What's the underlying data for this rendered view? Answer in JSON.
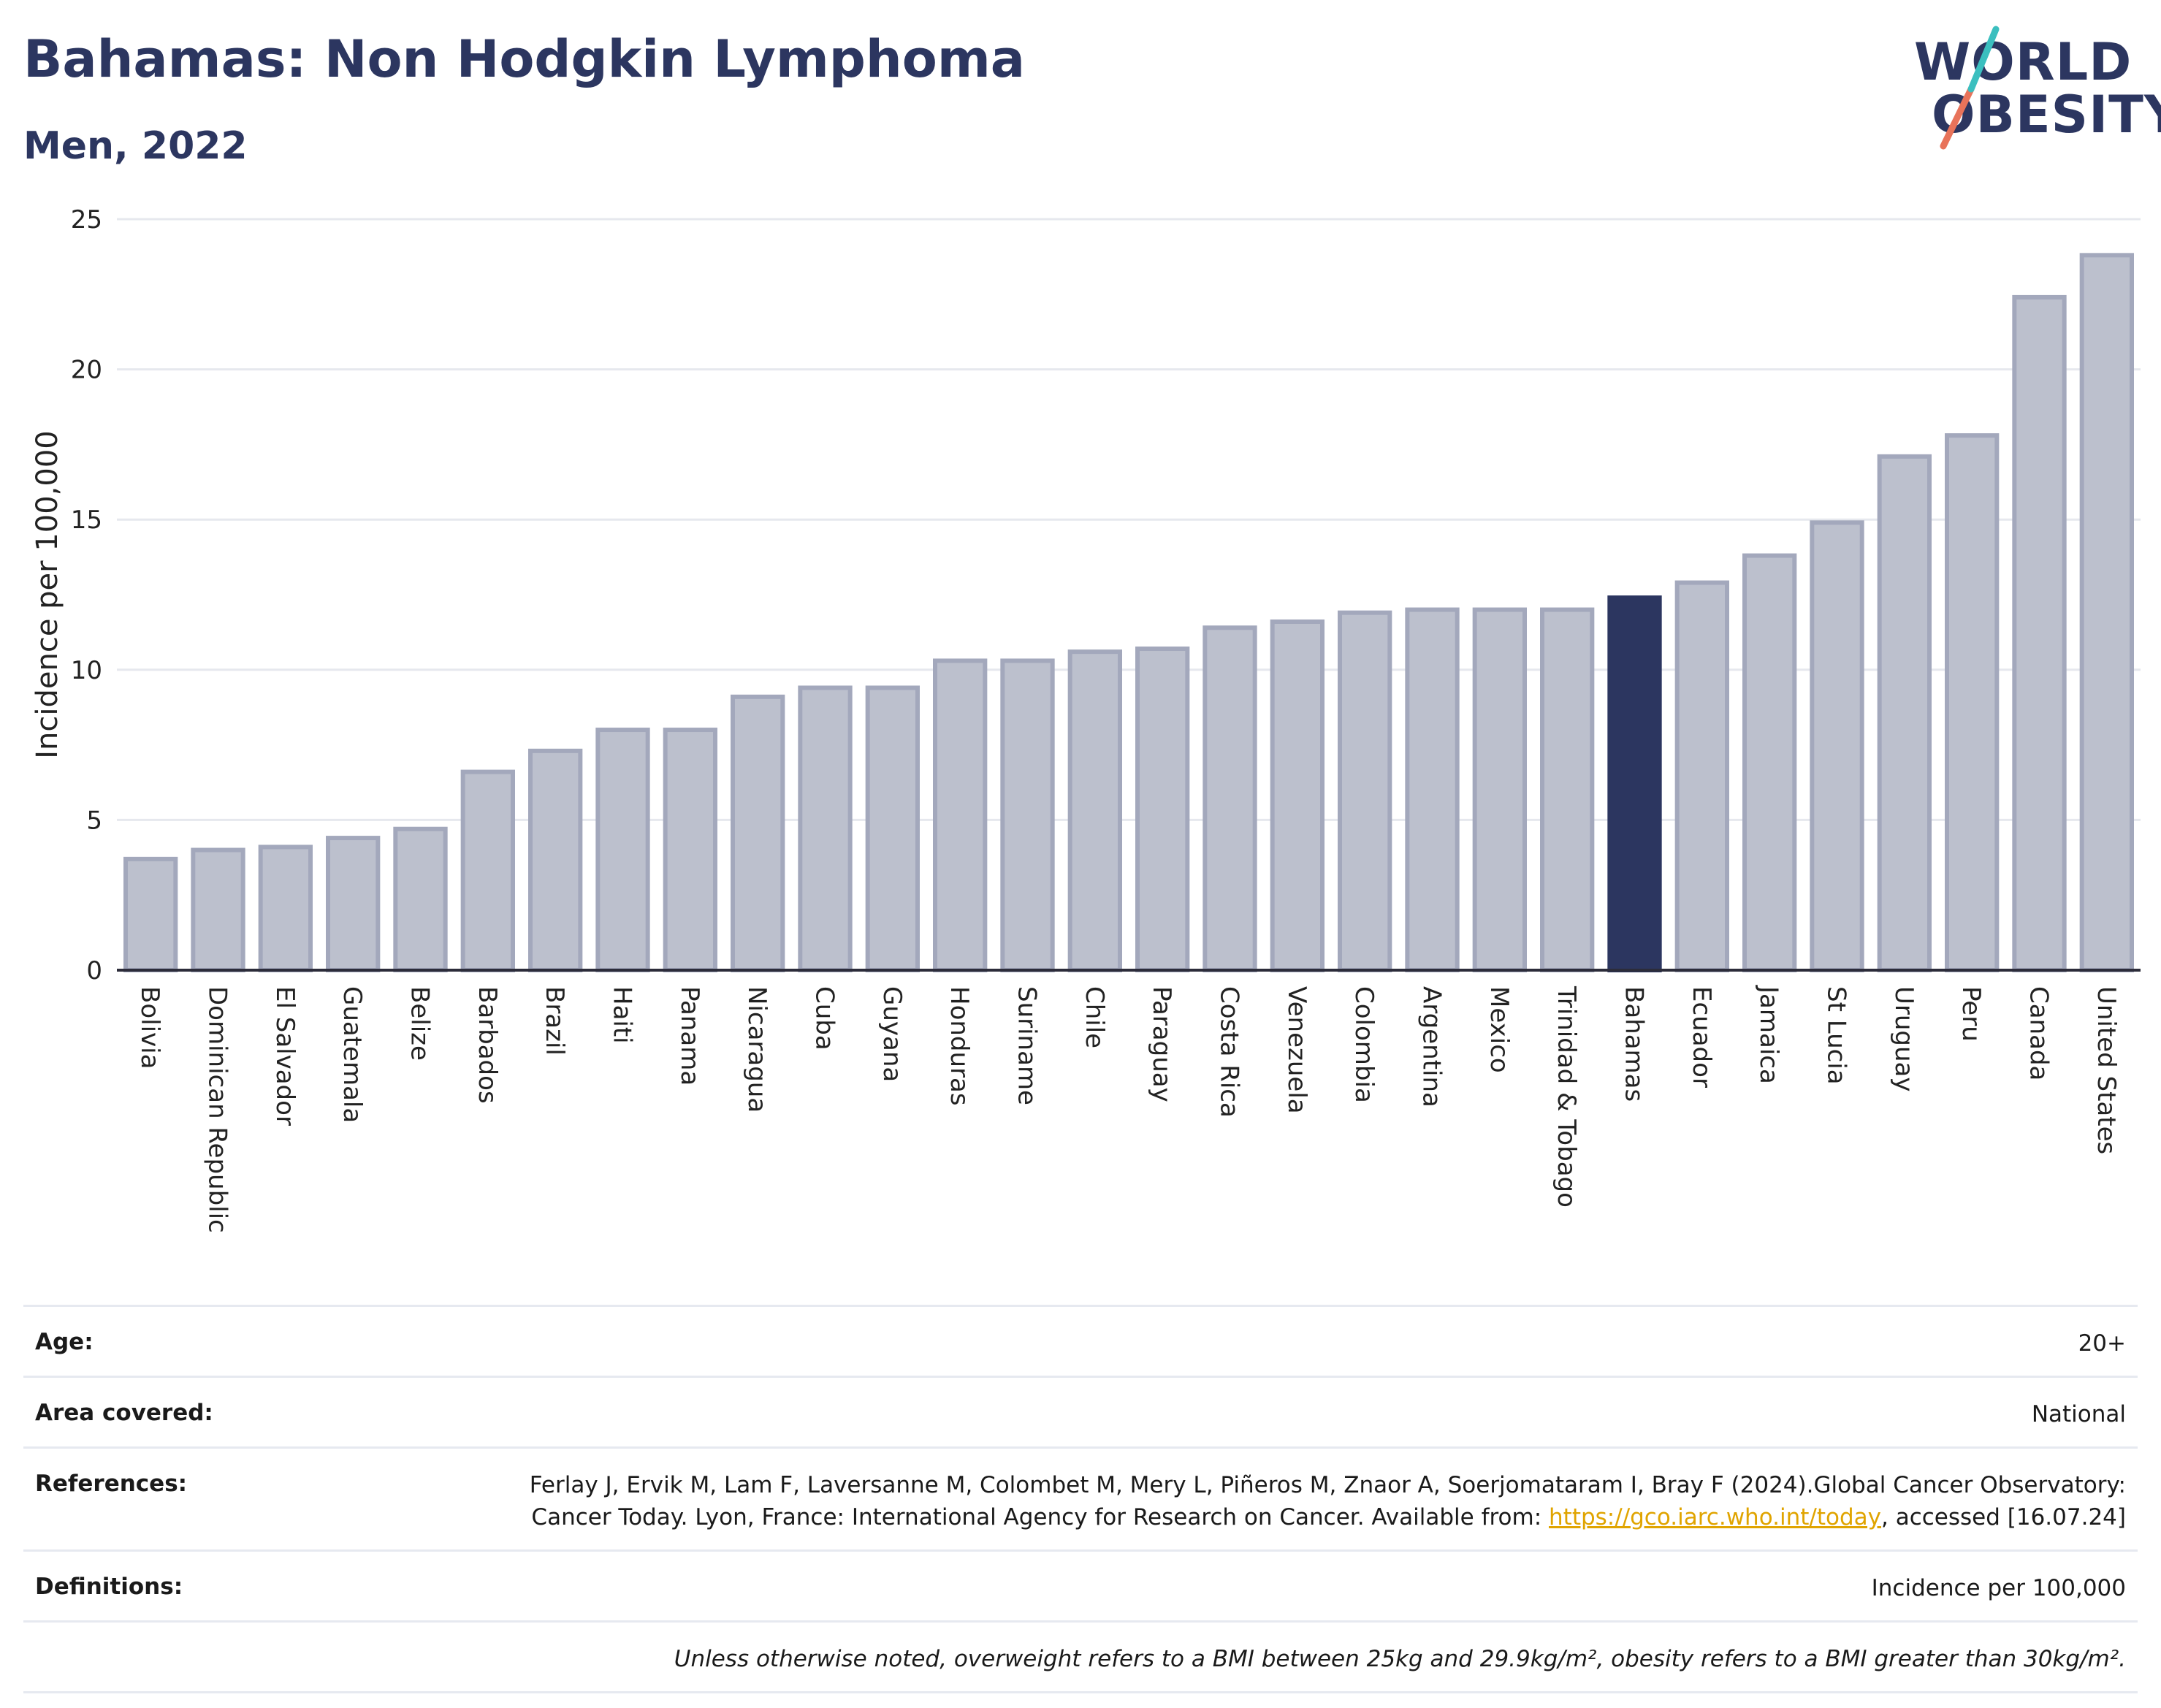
{
  "header": {
    "title": "Bahamas: Non Hodgkin Lymphoma",
    "subtitle": "Men, 2022"
  },
  "logo": {
    "line1": "WORLD",
    "line2": "OBESITY",
    "text_color": "#2c3660",
    "slash_colors": [
      "#e8735a",
      "#3bbfbf"
    ]
  },
  "chart_data": {
    "type": "bar",
    "ylabel": "Incidence per 100,000",
    "ylim": [
      0,
      25
    ],
    "yticks": [
      0,
      5,
      10,
      15,
      20,
      25
    ],
    "grid": true,
    "highlight": "Bahamas",
    "highlight_color": "#2c3660",
    "bar_color": "#bcc0cd",
    "bar_edge_color": "#a3a8bc",
    "categories": [
      "Bolivia",
      "Dominican Republic",
      "El Salvador",
      "Guatemala",
      "Belize",
      "Barbados",
      "Brazil",
      "Haiti",
      "Panama",
      "Nicaragua",
      "Cuba",
      "Guyana",
      "Honduras",
      "Suriname",
      "Chile",
      "Paraguay",
      "Costa Rica",
      "Venezuela",
      "Colombia",
      "Argentina",
      "Mexico",
      "Trinidad & Tobago",
      "Bahamas",
      "Ecuador",
      "Jamaica",
      "St Lucia",
      "Uruguay",
      "Peru",
      "Canada",
      "United States"
    ],
    "values": [
      3.7,
      4.0,
      4.1,
      4.4,
      4.7,
      6.6,
      7.3,
      8.0,
      8.0,
      9.1,
      9.4,
      9.4,
      10.3,
      10.3,
      10.6,
      10.7,
      11.4,
      11.6,
      11.9,
      12.0,
      12.0,
      12.0,
      12.4,
      12.9,
      13.8,
      14.9,
      17.1,
      17.8,
      22.4,
      23.8
    ]
  },
  "meta": {
    "age_label": "Age:",
    "age_value": "20+",
    "area_label": "Area covered:",
    "area_value": "National",
    "references_label": "References:",
    "references_text_1": "Ferlay J, Ervik M, Lam F, Laversanne M, Colombet M, Mery L, Piñeros M, Znaor A, Soerjomataram I, Bray F (2024).Global Cancer Observatory: Cancer Today. Lyon, France: International Agency for Research on Cancer. Available from: ",
    "references_link": "https://gco.iarc.who.int/today",
    "references_text_2": ", accessed [16.07.24]",
    "definitions_label": "Definitions:",
    "definitions_value": "Incidence per 100,000",
    "note": "Unless otherwise noted, overweight refers to a BMI between 25kg and 29.9kg/m², obesity refers to a BMI greater than 30kg/m²."
  }
}
